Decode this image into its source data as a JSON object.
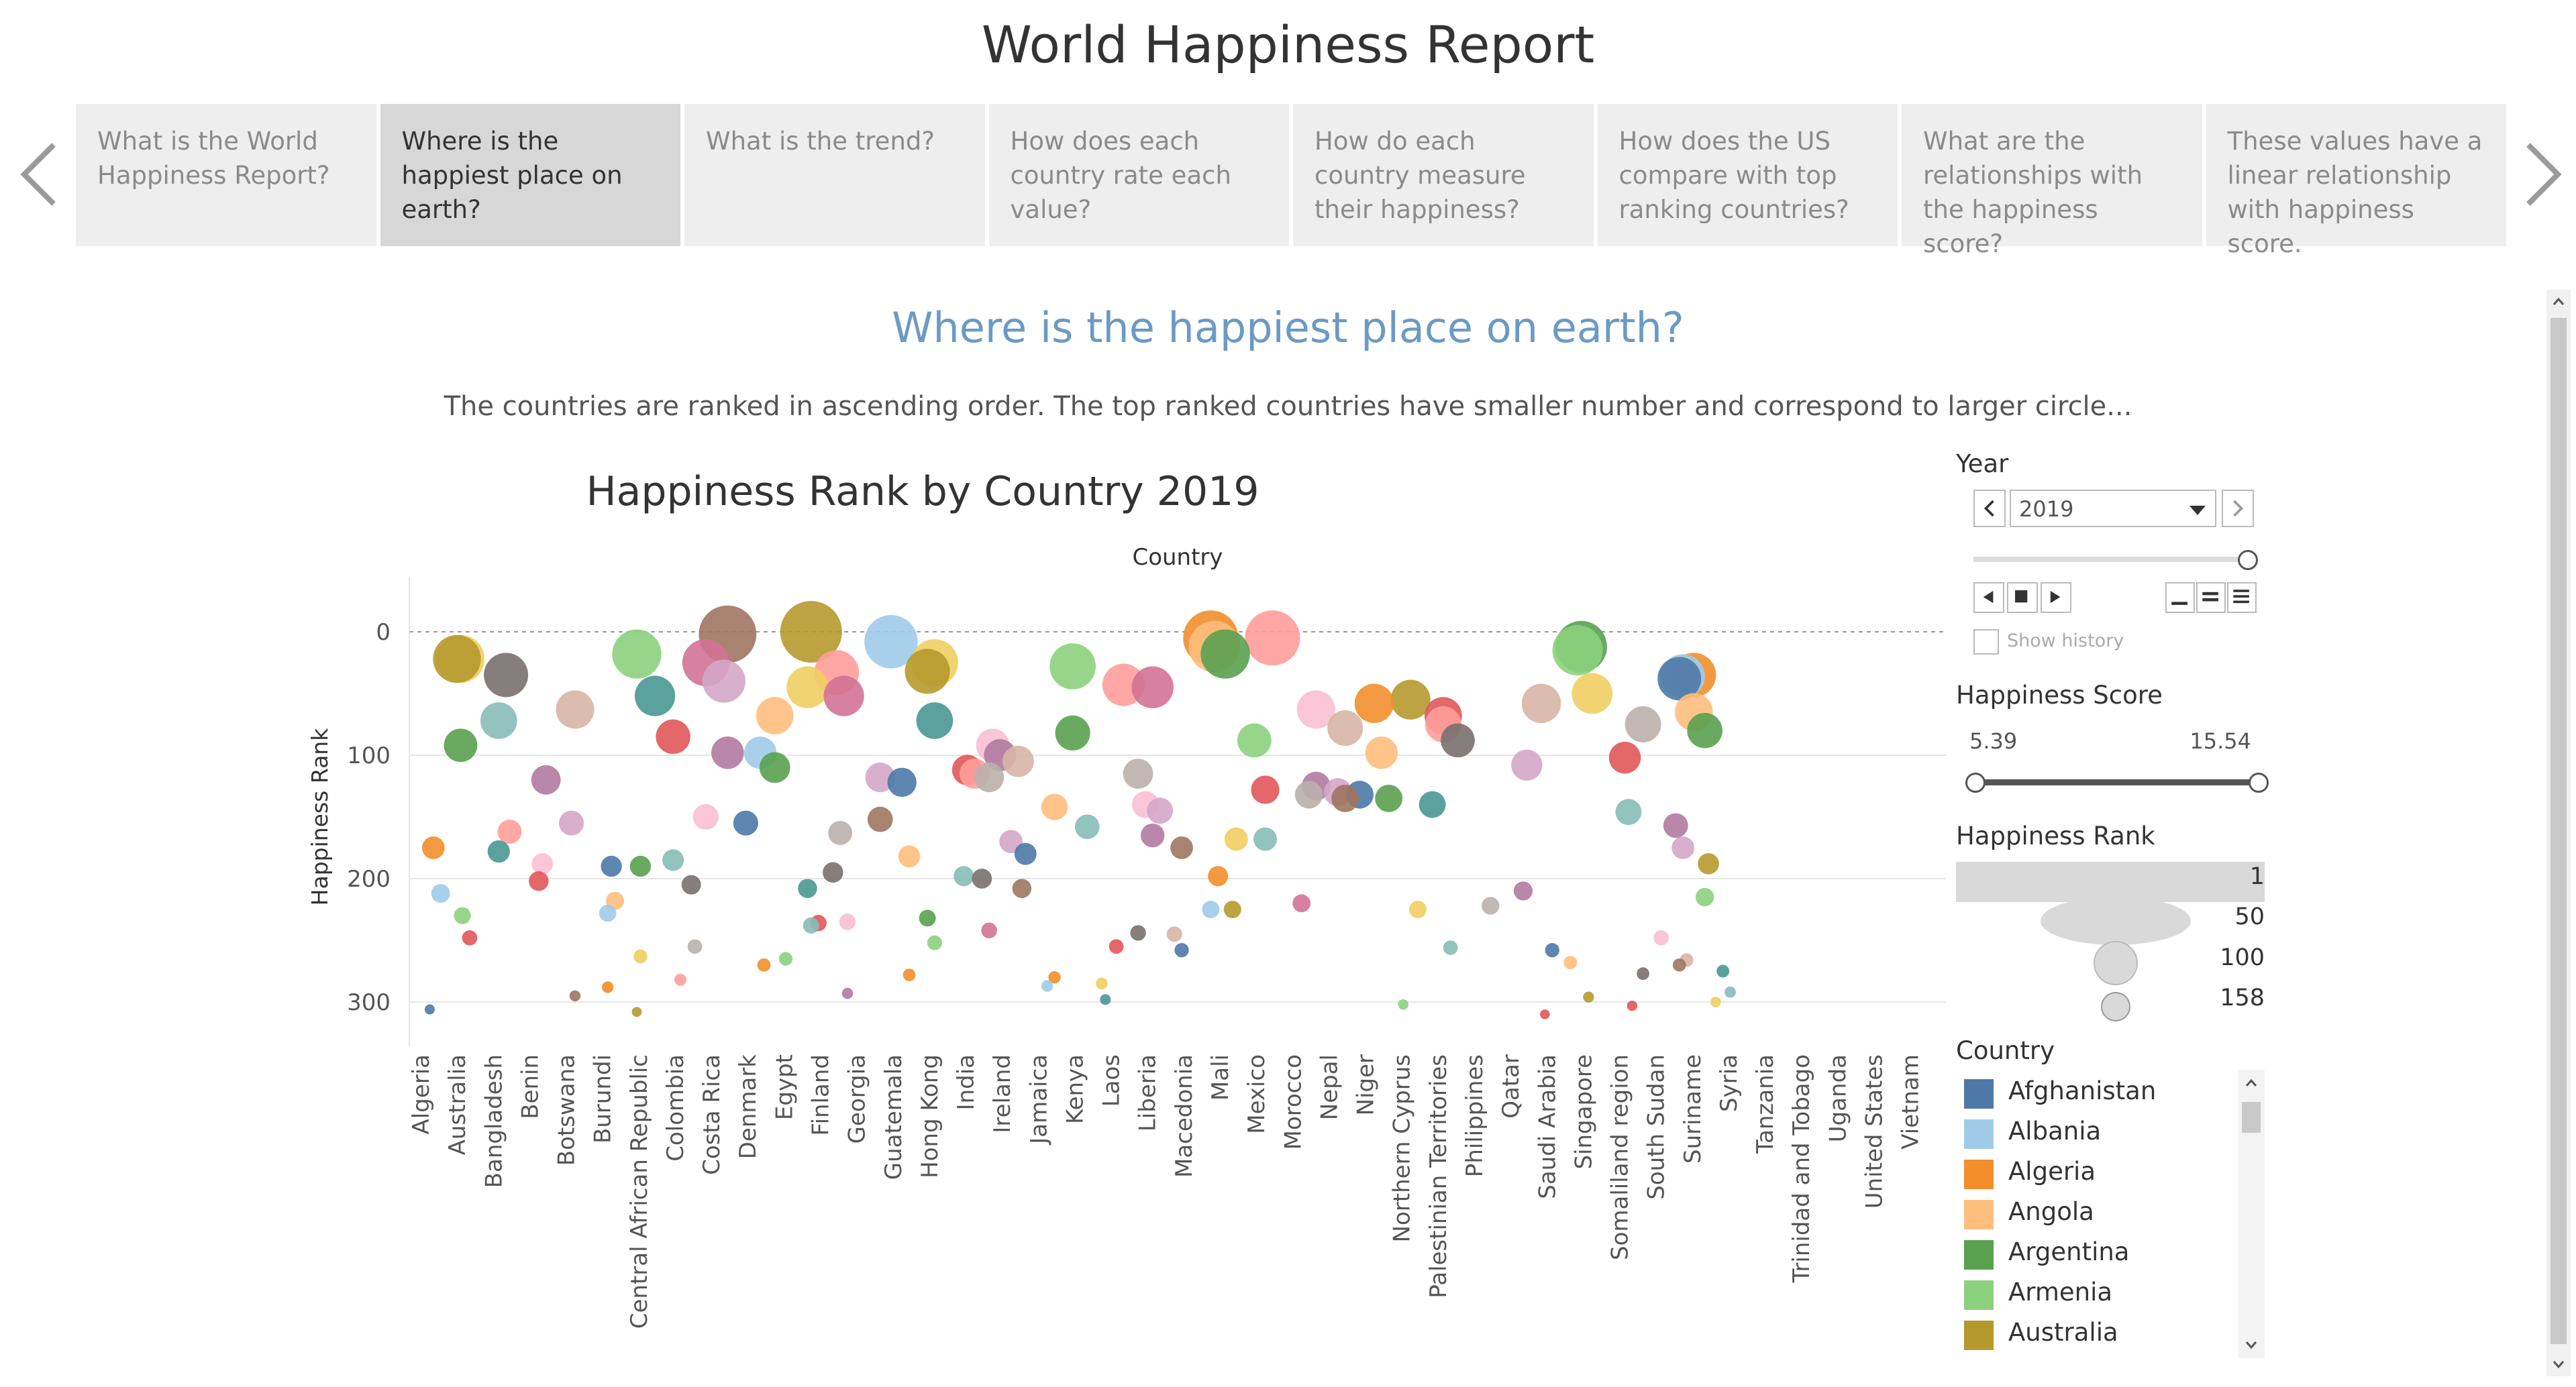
{
  "story": {
    "title": "World Happiness Report",
    "tabs": [
      "What is the World Happiness Report?",
      "Where is the happiest place on earth?",
      "What is the trend?",
      "How does each country rate each value?",
      "How do each country measure their happiness?",
      "How does the US compare with top ranking countries?",
      "What are the relationships with the happiness score?",
      "These values have a linear relationship with happiness score."
    ],
    "active_tab": 1
  },
  "page": {
    "heading": "Where is the happiest place on earth?",
    "caption": "The countries are ranked in ascending order. The top ranked countries have smaller number and correspond to larger circle..."
  },
  "filters": {
    "year_label": "Year",
    "year_value": "2019",
    "show_history": "Show history",
    "score_label": "Happiness Score",
    "score_min": "5.39",
    "score_max": "15.54",
    "rank_label": "Happiness Rank",
    "rank_sizes": [
      "1",
      "50",
      "100",
      "158"
    ],
    "legend_title": "Country",
    "legend": [
      {
        "name": "Afghanistan",
        "color": "#4e79a7"
      },
      {
        "name": "Albania",
        "color": "#a0cbe8"
      },
      {
        "name": "Algeria",
        "color": "#f28e2b"
      },
      {
        "name": "Angola",
        "color": "#ffbe7d"
      },
      {
        "name": "Argentina",
        "color": "#59a14f"
      },
      {
        "name": "Armenia",
        "color": "#8cd17d"
      },
      {
        "name": "Australia",
        "color": "#b6992d"
      }
    ]
  },
  "chart_data": {
    "type": "scatter",
    "title": "Happiness Rank by Country 2019",
    "xlabel": "Country",
    "ylabel": "Happiness Rank",
    "ylim": [
      0,
      320
    ],
    "y_ticks": [
      "0",
      "100",
      "200",
      "300"
    ],
    "categories": [
      "Algeria",
      "Australia",
      "Bangladesh",
      "Benin",
      "Botswana",
      "Burundi",
      "Central African Republic",
      "Colombia",
      "Costa Rica",
      "Denmark",
      "Egypt",
      "Finland",
      "Georgia",
      "Guatemala",
      "Hong Kong",
      "India",
      "Ireland",
      "Jamaica",
      "Kenya",
      "Laos",
      "Liberia",
      "Macedonia",
      "Mali",
      "Mexico",
      "Morocco",
      "Nepal",
      "Niger",
      "Northern Cyprus",
      "Palestinian Territories",
      "Philippines",
      "Qatar",
      "Saudi Arabia",
      "Singapore",
      "Somaliland region",
      "South Sudan",
      "Suriname",
      "Syria",
      "Tanzania",
      "Trinidad and Tobago",
      "Uganda",
      "United States",
      "Vietnam"
    ],
    "points": [
      {
        "x": 0.2,
        "y": 175,
        "c": "#f28e2b"
      },
      {
        "x": 0.4,
        "y": 212,
        "c": "#a0cbe8"
      },
      {
        "x": 0.1,
        "y": 306,
        "c": "#4e79a7"
      },
      {
        "x": 0.95,
        "y": 22,
        "c": "#f1ce63"
      },
      {
        "x": 0.85,
        "y": 22,
        "c": "#b6992d"
      },
      {
        "x": 0.95,
        "y": 92,
        "c": "#59a14f"
      },
      {
        "x": 1.0,
        "y": 230,
        "c": "#8cd17d"
      },
      {
        "x": 1.2,
        "y": 248,
        "c": "#e15759"
      },
      {
        "x": 2.0,
        "y": 72,
        "c": "#86bcb6"
      },
      {
        "x": 2.2,
        "y": 35,
        "c": "#79706e"
      },
      {
        "x": 2.0,
        "y": 178,
        "c": "#499894"
      },
      {
        "x": 2.3,
        "y": 162,
        "c": "#ff9d9a"
      },
      {
        "x": 3.3,
        "y": 120,
        "c": "#b07aa1"
      },
      {
        "x": 3.1,
        "y": 202,
        "c": "#e15759"
      },
      {
        "x": 3.2,
        "y": 188,
        "c": "#fabfd2"
      },
      {
        "x": 4.1,
        "y": 63,
        "c": "#d7b5a6"
      },
      {
        "x": 4.0,
        "y": 155,
        "c": "#d4a6c8"
      },
      {
        "x": 4.1,
        "y": 295,
        "c": "#9d7660"
      },
      {
        "x": 5.1,
        "y": 190,
        "c": "#4e79a7"
      },
      {
        "x": 5.0,
        "y": 228,
        "c": "#a0cbe8"
      },
      {
        "x": 5.2,
        "y": 218,
        "c": "#ffbe7d"
      },
      {
        "x": 5.0,
        "y": 288,
        "c": "#f28e2b"
      },
      {
        "x": 5.8,
        "y": 18,
        "c": "#8cd17d"
      },
      {
        "x": 6.3,
        "y": 52,
        "c": "#499894"
      },
      {
        "x": 5.9,
        "y": 190,
        "c": "#59a14f"
      },
      {
        "x": 5.8,
        "y": 308,
        "c": "#b6992d"
      },
      {
        "x": 5.9,
        "y": 263,
        "c": "#f1ce63"
      },
      {
        "x": 6.8,
        "y": 85,
        "c": "#e15759"
      },
      {
        "x": 6.8,
        "y": 185,
        "c": "#86bcb6"
      },
      {
        "x": 7.3,
        "y": 205,
        "c": "#79706e"
      },
      {
        "x": 7.4,
        "y": 255,
        "c": "#bab0ac"
      },
      {
        "x": 7.0,
        "y": 282,
        "c": "#ff9d9a"
      },
      {
        "x": 7.7,
        "y": 25,
        "c": "#d37295"
      },
      {
        "x": 8.2,
        "y": 40,
        "c": "#d4a6c8"
      },
      {
        "x": 8.3,
        "y": 2,
        "c": "#9d7660"
      },
      {
        "x": 8.3,
        "y": 98,
        "c": "#b07aa1"
      },
      {
        "x": 7.7,
        "y": 150,
        "c": "#fabfd2"
      },
      {
        "x": 9.2,
        "y": 98,
        "c": "#a0cbe8"
      },
      {
        "x": 9.6,
        "y": 68,
        "c": "#ffbe7d"
      },
      {
        "x": 9.6,
        "y": 110,
        "c": "#59a14f"
      },
      {
        "x": 8.8,
        "y": 155,
        "c": "#4e79a7"
      },
      {
        "x": 9.3,
        "y": 270,
        "c": "#f28e2b"
      },
      {
        "x": 9.9,
        "y": 265,
        "c": "#8cd17d"
      },
      {
        "x": 10.6,
        "y": 0,
        "c": "#b6992d"
      },
      {
        "x": 10.5,
        "y": 45,
        "c": "#f1ce63"
      },
      {
        "x": 10.5,
        "y": 208,
        "c": "#499894"
      },
      {
        "x": 10.6,
        "y": 238,
        "c": "#86bcb6"
      },
      {
        "x": 11.3,
        "y": 33,
        "c": "#ff9d9a"
      },
      {
        "x": 11.5,
        "y": 52,
        "c": "#d37295"
      },
      {
        "x": 11.4,
        "y": 163,
        "c": "#bab0ac"
      },
      {
        "x": 11.2,
        "y": 195,
        "c": "#79706e"
      },
      {
        "x": 10.8,
        "y": 236,
        "c": "#e15759"
      },
      {
        "x": 11.6,
        "y": 235,
        "c": "#fabfd2"
      },
      {
        "x": 11.6,
        "y": 293,
        "c": "#b07aa1"
      },
      {
        "x": 12.5,
        "y": 118,
        "c": "#d4a6c8"
      },
      {
        "x": 12.5,
        "y": 152,
        "c": "#9d7660"
      },
      {
        "x": 13.1,
        "y": 122,
        "c": "#4e79a7"
      },
      {
        "x": 12.8,
        "y": 8,
        "c": "#a0cbe8"
      },
      {
        "x": 13.3,
        "y": 182,
        "c": "#ffbe7d"
      },
      {
        "x": 13.3,
        "y": 278,
        "c": "#f28e2b"
      },
      {
        "x": 14.0,
        "y": 25,
        "c": "#f1ce63"
      },
      {
        "x": 13.8,
        "y": 32,
        "c": "#b6992d"
      },
      {
        "x": 14.0,
        "y": 72,
        "c": "#499894"
      },
      {
        "x": 13.8,
        "y": 232,
        "c": "#59a14f"
      },
      {
        "x": 14.0,
        "y": 252,
        "c": "#8cd17d"
      },
      {
        "x": 14.9,
        "y": 112,
        "c": "#e15759"
      },
      {
        "x": 15.1,
        "y": 115,
        "c": "#ff9d9a"
      },
      {
        "x": 14.8,
        "y": 198,
        "c": "#86bcb6"
      },
      {
        "x": 15.3,
        "y": 200,
        "c": "#79706e"
      },
      {
        "x": 15.5,
        "y": 118,
        "c": "#bab0ac"
      },
      {
        "x": 15.6,
        "y": 92,
        "c": "#fabfd2"
      },
      {
        "x": 15.8,
        "y": 100,
        "c": "#b07aa1"
      },
      {
        "x": 15.5,
        "y": 242,
        "c": "#d37295"
      },
      {
        "x": 16.3,
        "y": 105,
        "c": "#d7b5a6"
      },
      {
        "x": 16.1,
        "y": 170,
        "c": "#d4a6c8"
      },
      {
        "x": 16.5,
        "y": 180,
        "c": "#4e79a7"
      },
      {
        "x": 16.4,
        "y": 208,
        "c": "#9d7660"
      },
      {
        "x": 17.3,
        "y": 142,
        "c": "#ffbe7d"
      },
      {
        "x": 17.1,
        "y": 287,
        "c": "#a0cbe8"
      },
      {
        "x": 17.3,
        "y": 280,
        "c": "#f28e2b"
      },
      {
        "x": 17.8,
        "y": 82,
        "c": "#59a14f"
      },
      {
        "x": 17.8,
        "y": 28,
        "c": "#8cd17d"
      },
      {
        "x": 18.2,
        "y": 158,
        "c": "#86bcb6"
      },
      {
        "x": 18.6,
        "y": 285,
        "c": "#f1ce63"
      },
      {
        "x": 18.7,
        "y": 298,
        "c": "#499894"
      },
      {
        "x": 19.2,
        "y": 43,
        "c": "#ff9d9a"
      },
      {
        "x": 19.0,
        "y": 255,
        "c": "#e15759"
      },
      {
        "x": 19.6,
        "y": 115,
        "c": "#bab0ac"
      },
      {
        "x": 19.6,
        "y": 244,
        "c": "#79706e"
      },
      {
        "x": 20.0,
        "y": 45,
        "c": "#d37295"
      },
      {
        "x": 19.8,
        "y": 140,
        "c": "#fabfd2"
      },
      {
        "x": 20.0,
        "y": 165,
        "c": "#b07aa1"
      },
      {
        "x": 20.2,
        "y": 145,
        "c": "#d4a6c8"
      },
      {
        "x": 20.8,
        "y": 175,
        "c": "#9d7660"
      },
      {
        "x": 20.6,
        "y": 245,
        "c": "#d7b5a6"
      },
      {
        "x": 20.8,
        "y": 258,
        "c": "#4e79a7"
      },
      {
        "x": 21.7,
        "y": 12,
        "c": "#ffbe7d"
      },
      {
        "x": 21.6,
        "y": 5,
        "c": "#f28e2b"
      },
      {
        "x": 22.0,
        "y": 18,
        "c": "#59a14f"
      },
      {
        "x": 21.8,
        "y": 198,
        "c": "#f28e2b"
      },
      {
        "x": 21.6,
        "y": 225,
        "c": "#a0cbe8"
      },
      {
        "x": 22.8,
        "y": 88,
        "c": "#8cd17d"
      },
      {
        "x": 22.3,
        "y": 168,
        "c": "#f1ce63"
      },
      {
        "x": 22.2,
        "y": 225,
        "c": "#b6992d"
      },
      {
        "x": 23.1,
        "y": 168,
        "c": "#86bcb6"
      },
      {
        "x": 23.3,
        "y": 5,
        "c": "#ff9d9a"
      },
      {
        "x": 23.1,
        "y": 128,
        "c": "#e15759"
      },
      {
        "x": 24.3,
        "y": 132,
        "c": "#bab0ac"
      },
      {
        "x": 24.1,
        "y": 220,
        "c": "#d37295"
      },
      {
        "x": 24.5,
        "y": 63,
        "c": "#fabfd2"
      },
      {
        "x": 24.5,
        "y": 125,
        "c": "#b07aa1"
      },
      {
        "x": 25.1,
        "y": 130,
        "c": "#d4a6c8"
      },
      {
        "x": 25.3,
        "y": 135,
        "c": "#9d7660"
      },
      {
        "x": 25.3,
        "y": 78,
        "c": "#d7b5a6"
      },
      {
        "x": 25.7,
        "y": 132,
        "c": "#4e79a7"
      },
      {
        "x": 26.1,
        "y": 58,
        "c": "#f28e2b"
      },
      {
        "x": 26.3,
        "y": 98,
        "c": "#ffbe7d"
      },
      {
        "x": 26.5,
        "y": 135,
        "c": "#59a14f"
      },
      {
        "x": 27.1,
        "y": 55,
        "c": "#b6992d"
      },
      {
        "x": 27.3,
        "y": 225,
        "c": "#f1ce63"
      },
      {
        "x": 26.9,
        "y": 302,
        "c": "#8cd17d"
      },
      {
        "x": 28.0,
        "y": 68,
        "c": "#e15759"
      },
      {
        "x": 28.0,
        "y": 75,
        "c": "#ff9d9a"
      },
      {
        "x": 28.4,
        "y": 88,
        "c": "#79706e"
      },
      {
        "x": 27.7,
        "y": 140,
        "c": "#499894"
      },
      {
        "x": 28.2,
        "y": 256,
        "c": "#86bcb6"
      },
      {
        "x": 29.3,
        "y": 222,
        "c": "#bab0ac"
      },
      {
        "x": 30.2,
        "y": 210,
        "c": "#b07aa1"
      },
      {
        "x": 30.7,
        "y": 58,
        "c": "#d7b5a6"
      },
      {
        "x": 30.3,
        "y": 108,
        "c": "#d4a6c8"
      },
      {
        "x": 31.0,
        "y": 258,
        "c": "#4e79a7"
      },
      {
        "x": 30.8,
        "y": 310,
        "c": "#e15759"
      },
      {
        "x": 31.8,
        "y": 12,
        "c": "#59a14f"
      },
      {
        "x": 31.7,
        "y": 15,
        "c": "#8cd17d"
      },
      {
        "x": 32.1,
        "y": 50,
        "c": "#f1ce63"
      },
      {
        "x": 31.5,
        "y": 268,
        "c": "#ffbe7d"
      },
      {
        "x": 32.0,
        "y": 296,
        "c": "#b6992d"
      },
      {
        "x": 33.5,
        "y": 75,
        "c": "#bab0ac"
      },
      {
        "x": 33.0,
        "y": 102,
        "c": "#e15759"
      },
      {
        "x": 33.1,
        "y": 146,
        "c": "#86bcb6"
      },
      {
        "x": 33.2,
        "y": 303,
        "c": "#e15759"
      },
      {
        "x": 33.5,
        "y": 277,
        "c": "#79706e"
      },
      {
        "x": 34.0,
        "y": 248,
        "c": "#fabfd2"
      },
      {
        "x": 34.6,
        "y": 36,
        "c": "#a0cbe8"
      },
      {
        "x": 34.9,
        "y": 35,
        "c": "#f28e2b"
      },
      {
        "x": 34.5,
        "y": 38,
        "c": "#4e79a7"
      },
      {
        "x": 34.9,
        "y": 65,
        "c": "#ffbe7d"
      },
      {
        "x": 35.2,
        "y": 80,
        "c": "#59a14f"
      },
      {
        "x": 34.4,
        "y": 157,
        "c": "#b07aa1"
      },
      {
        "x": 34.6,
        "y": 175,
        "c": "#d4a6c8"
      },
      {
        "x": 34.5,
        "y": 270,
        "c": "#9d7660"
      },
      {
        "x": 34.7,
        "y": 266,
        "c": "#d7b5a6"
      },
      {
        "x": 35.3,
        "y": 188,
        "c": "#b6992d"
      },
      {
        "x": 35.2,
        "y": 215,
        "c": "#8cd17d"
      },
      {
        "x": 35.7,
        "y": 275,
        "c": "#499894"
      },
      {
        "x": 35.9,
        "y": 292,
        "c": "#86bcb6"
      },
      {
        "x": 35.5,
        "y": 300,
        "c": "#f1ce63"
      }
    ]
  }
}
